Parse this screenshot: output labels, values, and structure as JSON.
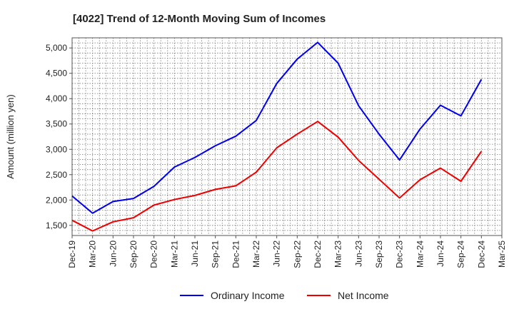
{
  "chart_data": {
    "type": "line",
    "title": "[4022]  Trend of 12-Month Moving Sum of Incomes",
    "xlabel": "",
    "ylabel": "Amount (million yen)",
    "categories": [
      "Dec-19",
      "Mar-20",
      "Jun-20",
      "Sep-20",
      "Dec-20",
      "Mar-21",
      "Jun-21",
      "Sep-21",
      "Dec-21",
      "Mar-22",
      "Jun-22",
      "Sep-22",
      "Dec-22",
      "Mar-23",
      "Jun-23",
      "Sep-23",
      "Dec-23",
      "Mar-24",
      "Jun-24",
      "Sep-24",
      "Dec-24",
      "Mar-25"
    ],
    "ylim": [
      1300,
      5200
    ],
    "yticks": [
      1500,
      2000,
      2500,
      3000,
      3500,
      4000,
      4500,
      5000
    ],
    "ytick_labels": [
      "1,500",
      "2,000",
      "2,500",
      "3,000",
      "3,500",
      "4,000",
      "4,500",
      "5,000"
    ],
    "grid": true,
    "legend_position": "bottom-center",
    "series": [
      {
        "name": "Ordinary Income",
        "color": "#0000ee",
        "values": [
          2080,
          1740,
          1970,
          2030,
          2270,
          2650,
          2840,
          3070,
          3260,
          3570,
          4300,
          4780,
          5110,
          4700,
          3860,
          3300,
          2790,
          3400,
          3870,
          3660,
          4380,
          null
        ]
      },
      {
        "name": "Net Income",
        "color": "#ee0000",
        "values": [
          1600,
          1390,
          1570,
          1650,
          1900,
          2010,
          2090,
          2210,
          2280,
          2550,
          3030,
          3300,
          3550,
          3240,
          2780,
          2410,
          2040,
          2400,
          2630,
          2370,
          2960,
          null
        ]
      }
    ]
  }
}
